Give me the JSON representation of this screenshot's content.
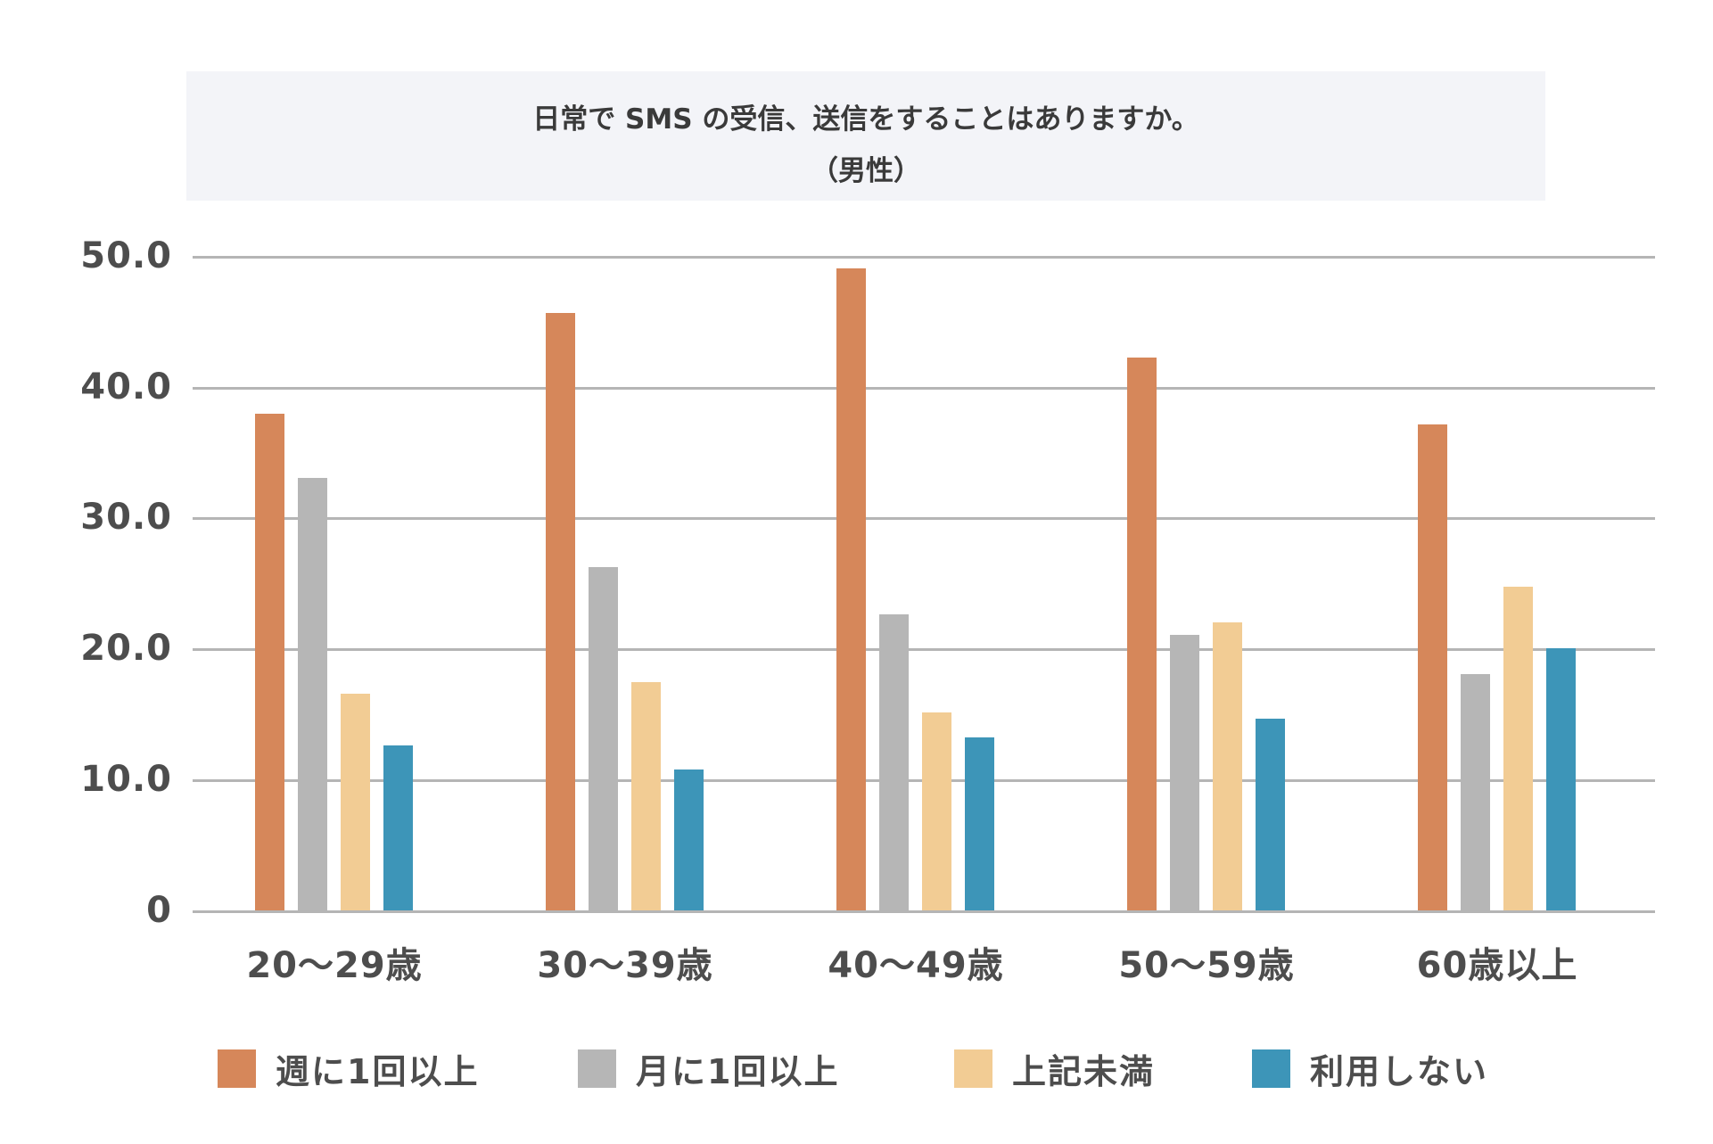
{
  "title": {
    "line1": "日常で SMS の受信、送信をすることはありますか。",
    "line2": "（男性）"
  },
  "colors": {
    "weekly": "#d6875a",
    "monthly": "#b6b6b6",
    "less": "#f2cc94",
    "none": "#3d95b8",
    "grid": "#b5b5b5",
    "title_bg": "#f3f4f8",
    "text": "#4d4d4d"
  },
  "y_ticks": [
    "50.0",
    "40.0",
    "30.0",
    "20.0",
    "10.0",
    "0"
  ],
  "x_ticks": [
    "20～29歳",
    "30～39歳",
    "40～49歳",
    "50～59歳",
    "60歳以上"
  ],
  "legend": [
    {
      "label": "週に1回以上",
      "color": "#d6875a"
    },
    {
      "label": "月に1回以上",
      "color": "#b6b6b6"
    },
    {
      "label": "上記未満",
      "color": "#f2cc94"
    },
    {
      "label": "利用しない",
      "color": "#3d95b8"
    }
  ],
  "chart_data": {
    "type": "bar",
    "title": "日常で SMS の受信、送信をすることはありますか。（男性）",
    "xlabel": "",
    "ylabel": "",
    "ylim": [
      0,
      50
    ],
    "grid": true,
    "legend_position": "bottom",
    "categories": [
      "20～29歳",
      "30～39歳",
      "40～49歳",
      "50～59歳",
      "60歳以上"
    ],
    "series": [
      {
        "name": "週に1回以上",
        "color": "#d6875a",
        "values": [
          38.0,
          45.7,
          49.1,
          42.3,
          37.2
        ]
      },
      {
        "name": "月に1回以上",
        "color": "#b6b6b6",
        "values": [
          33.1,
          26.3,
          22.7,
          21.1,
          18.1
        ]
      },
      {
        "name": "上記未満",
        "color": "#f2cc94",
        "values": [
          16.6,
          17.5,
          15.2,
          22.1,
          24.8
        ]
      },
      {
        "name": "利用しない",
        "color": "#3d95b8",
        "values": [
          12.7,
          10.8,
          13.3,
          14.7,
          20.1
        ]
      }
    ]
  }
}
